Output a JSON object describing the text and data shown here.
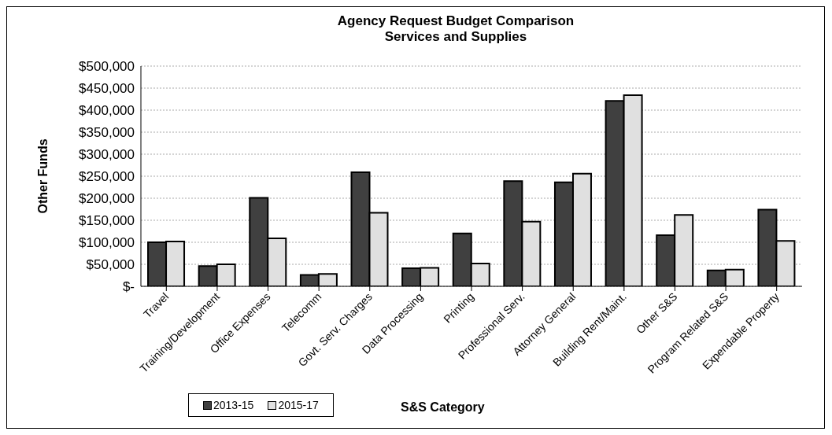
{
  "chart_data": {
    "type": "bar",
    "title": "Agency Request Budget Comparison",
    "subtitle": "Services and Supplies",
    "xlabel": "S&S Category",
    "ylabel": "Other Funds",
    "categories": [
      "Travel",
      "Training/Development",
      "Office Expenses",
      "Telecomm",
      "Govt. Serv. Charges",
      "Data Processing",
      "Printing",
      "Professional Serv.",
      "Attorney General",
      "Building Rent/Maint.",
      "Other S&S",
      "Program Related S&S",
      "Expendable Property"
    ],
    "series": [
      {
        "name": "2013-15",
        "color": "#404040",
        "values": [
          100000,
          46000,
          201000,
          26000,
          259000,
          41000,
          120000,
          239000,
          236000,
          421000,
          116000,
          36000,
          174000
        ]
      },
      {
        "name": "2015-17",
        "color": "#e0e0e0",
        "values": [
          102000,
          50000,
          109000,
          28000,
          167000,
          42000,
          52000,
          147000,
          256000,
          434000,
          162000,
          38000,
          103000
        ]
      }
    ],
    "ylim": [
      0,
      500000
    ],
    "yticks": [
      {
        "value": 0,
        "label": "$-"
      },
      {
        "value": 50000,
        "label": "$50,000"
      },
      {
        "value": 100000,
        "label": "$100,000"
      },
      {
        "value": 150000,
        "label": "$150,000"
      },
      {
        "value": 200000,
        "label": "$200,000"
      },
      {
        "value": 250000,
        "label": "$250,000"
      },
      {
        "value": 300000,
        "label": "$300,000"
      },
      {
        "value": 350000,
        "label": "$350,000"
      },
      {
        "value": 400000,
        "label": "$400,000"
      },
      {
        "value": 450000,
        "label": "$450,000"
      },
      {
        "value": 500000,
        "label": "$500,000"
      }
    ],
    "grid": "y",
    "legend": "bottom left"
  }
}
